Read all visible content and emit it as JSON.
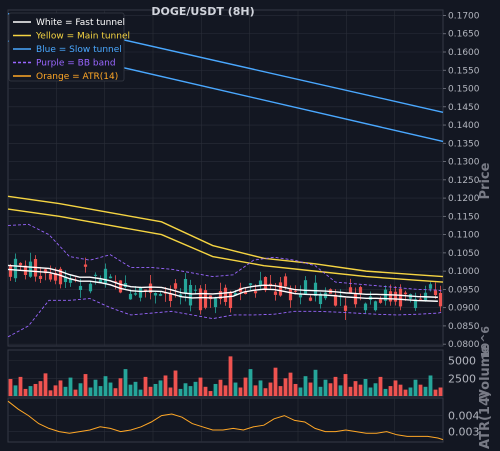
{
  "chart_data": [
    {
      "type": "line",
      "title": "DOGE/USDT (8H)",
      "ylabel": "Price",
      "ylim": [
        0.0795,
        0.1715
      ],
      "yticks": [
        "0.0800",
        "0.0850",
        "0.0900",
        "0.0950",
        "0.1000",
        "0.1050",
        "0.1100",
        "0.1150",
        "0.1200",
        "0.1250",
        "0.1300",
        "0.1350",
        "0.1400",
        "0.1450",
        "0.1500",
        "0.1550",
        "0.1600",
        "0.1650",
        "0.1700"
      ],
      "grid": true,
      "legend": {
        "position": "top-left",
        "entries": [
          {
            "label": "White = Fast tunnel",
            "color": "#ffffff",
            "style": "solid"
          },
          {
            "label": "Yellow = Main tunnel",
            "color": "#f5d442",
            "style": "solid"
          },
          {
            "label": "Blue = Slow tunnel",
            "color": "#4aa8ff",
            "style": "solid"
          },
          {
            "label": "Purple = BB band",
            "color": "#9966ff",
            "style": "dashed"
          },
          {
            "label": "Orange = ATR(14)",
            "color": "#ffa726",
            "style": "solid"
          }
        ]
      },
      "series": [
        {
          "name": "White = Fast tunnel",
          "color": "#ffffff",
          "x": [
            0,
            10,
            20,
            30,
            40,
            50,
            60,
            70,
            80,
            90,
            100,
            110,
            120,
            130,
            140,
            150,
            160,
            170,
            180,
            190,
            200,
            210,
            220,
            230,
            240,
            250,
            260,
            270,
            280,
            290,
            300,
            310,
            320,
            330,
            340,
            350,
            360,
            370,
            380,
            390,
            400,
            410,
            420
          ],
          "y": [
            0.101,
            0.1008,
            0.1006,
            0.1004,
            0.1002,
            0.0995,
            0.0985,
            0.0978,
            0.0978,
            0.0974,
            0.0968,
            0.0958,
            0.0952,
            0.095,
            0.0951,
            0.095,
            0.0943,
            0.0935,
            0.0932,
            0.0933,
            0.0932,
            0.0934,
            0.0937,
            0.0948,
            0.0953,
            0.0956,
            0.0955,
            0.095,
            0.0944,
            0.0942,
            0.0941,
            0.094,
            0.0938,
            0.0935,
            0.0933,
            0.0931,
            0.0931,
            0.093,
            0.0929,
            0.0927,
            0.0925,
            0.0924,
            0.0923
          ]
        },
        {
          "name": "Yellow = Main tunnel",
          "color": "#f5d442",
          "x": [
            0,
            50,
            100,
            150,
            200,
            250,
            300,
            350,
            400,
            425
          ],
          "y": [
            0.1205,
            0.1185,
            0.116,
            0.1135,
            0.107,
            0.1035,
            0.102,
            0.1,
            0.099,
            0.0985
          ]
        },
        {
          "name": "Yellow = Main tunnel (lower)",
          "color": "#f5d442",
          "x": [
            0,
            50,
            100,
            150,
            200,
            250,
            300,
            350,
            400,
            425
          ],
          "y": [
            0.117,
            0.115,
            0.1125,
            0.11,
            0.104,
            0.1015,
            0.1,
            0.0985,
            0.0975,
            0.097
          ]
        },
        {
          "name": "Blue = Slow tunnel",
          "color": "#4aa8ff",
          "x": [
            0,
            425
          ],
          "y": [
            0.1705,
            0.1435
          ]
        },
        {
          "name": "Blue = Slow tunnel (lower)",
          "color": "#4aa8ff",
          "x": [
            0,
            425
          ],
          "y": [
            0.163,
            0.1355
          ]
        },
        {
          "name": "Purple = BB band (upper)",
          "color": "#9966ff",
          "x": [
            0,
            20,
            40,
            60,
            80,
            100,
            120,
            140,
            160,
            180,
            200,
            220,
            240,
            260,
            280,
            300,
            320,
            340,
            360,
            380,
            400,
            420,
            425
          ],
          "y": [
            0.1125,
            0.1128,
            0.11,
            0.104,
            0.103,
            0.1045,
            0.101,
            0.101,
            0.1005,
            0.0995,
            0.0985,
            0.099,
            0.103,
            0.1038,
            0.103,
            0.1015,
            0.097,
            0.0965,
            0.096,
            0.0955,
            0.095,
            0.0948,
            0.0945
          ]
        },
        {
          "name": "Purple = BB band (lower)",
          "color": "#9966ff",
          "x": [
            0,
            20,
            40,
            60,
            80,
            100,
            120,
            140,
            160,
            180,
            200,
            220,
            240,
            260,
            280,
            300,
            320,
            340,
            360,
            380,
            400,
            420,
            425
          ],
          "y": [
            0.082,
            0.085,
            0.092,
            0.092,
            0.0925,
            0.09,
            0.088,
            0.0885,
            0.089,
            0.088,
            0.087,
            0.088,
            0.088,
            0.0882,
            0.089,
            0.089,
            0.0888,
            0.0885,
            0.0882,
            0.088,
            0.0882,
            0.0885,
            0.0888
          ]
        }
      ]
    },
    {
      "type": "bar",
      "ylabel": "Volume",
      "scale_label": "10^6",
      "ylim": [
        0,
        6500
      ],
      "yticks": [
        "2500",
        "5000"
      ],
      "volumes": [
        2400,
        1500,
        2700,
        1000,
        1400,
        1700,
        2100,
        3200,
        800,
        1500,
        2200,
        1300,
        2600,
        900,
        1800,
        3100,
        1200,
        2300,
        1400,
        2800,
        1900,
        1100,
        2500,
        3800,
        1600,
        2000,
        900,
        2700,
        1300,
        1700,
        2200,
        2900,
        1200,
        3600,
        1000,
        1800,
        1400,
        2000,
        2600,
        1300,
        700,
        1700,
        2300,
        1500,
        5600,
        1900,
        1200,
        2600,
        3800,
        1500,
        2200,
        1100,
        1900,
        4000,
        1400,
        2500,
        3300,
        1700,
        1200,
        2800,
        1900,
        3700,
        1300,
        2300,
        1800,
        2700,
        1500,
        3100,
        1300,
        2100,
        1600,
        2400,
        1200,
        1800,
        2700,
        1000,
        1400,
        2200,
        1600,
        900,
        1200,
        2300,
        1600,
        1300,
        2900,
        900,
        1200
      ],
      "up_color": "#26a69a",
      "down_color": "#ef5350"
    },
    {
      "type": "line",
      "ylabel": "ATR(14)",
      "ylim": [
        0.00235,
        0.0051
      ],
      "yticks": [
        "0.003",
        "0.004"
      ],
      "series": [
        {
          "name": "Orange = ATR(14)",
          "color": "#ffa726",
          "x": [
            0,
            10,
            20,
            30,
            40,
            50,
            60,
            70,
            80,
            90,
            100,
            110,
            120,
            130,
            140,
            150,
            160,
            170,
            180,
            190,
            200,
            210,
            220,
            230,
            240,
            250,
            260,
            270,
            280,
            290,
            300,
            310,
            320,
            330,
            340,
            350,
            360,
            370,
            380,
            390,
            400,
            410,
            420,
            425
          ],
          "y": [
            0.0049,
            0.0044,
            0.004,
            0.0035,
            0.0032,
            0.003,
            0.0029,
            0.003,
            0.0031,
            0.0033,
            0.0032,
            0.003,
            0.0031,
            0.0033,
            0.0036,
            0.004,
            0.0041,
            0.0039,
            0.0035,
            0.0033,
            0.0031,
            0.0031,
            0.0032,
            0.0031,
            0.0033,
            0.0034,
            0.0038,
            0.004,
            0.0037,
            0.0036,
            0.0032,
            0.003,
            0.003,
            0.0031,
            0.003,
            0.0029,
            0.0029,
            0.003,
            0.0028,
            0.0027,
            0.0027,
            0.0027,
            0.0026,
            0.0025
          ]
        }
      ]
    }
  ]
}
